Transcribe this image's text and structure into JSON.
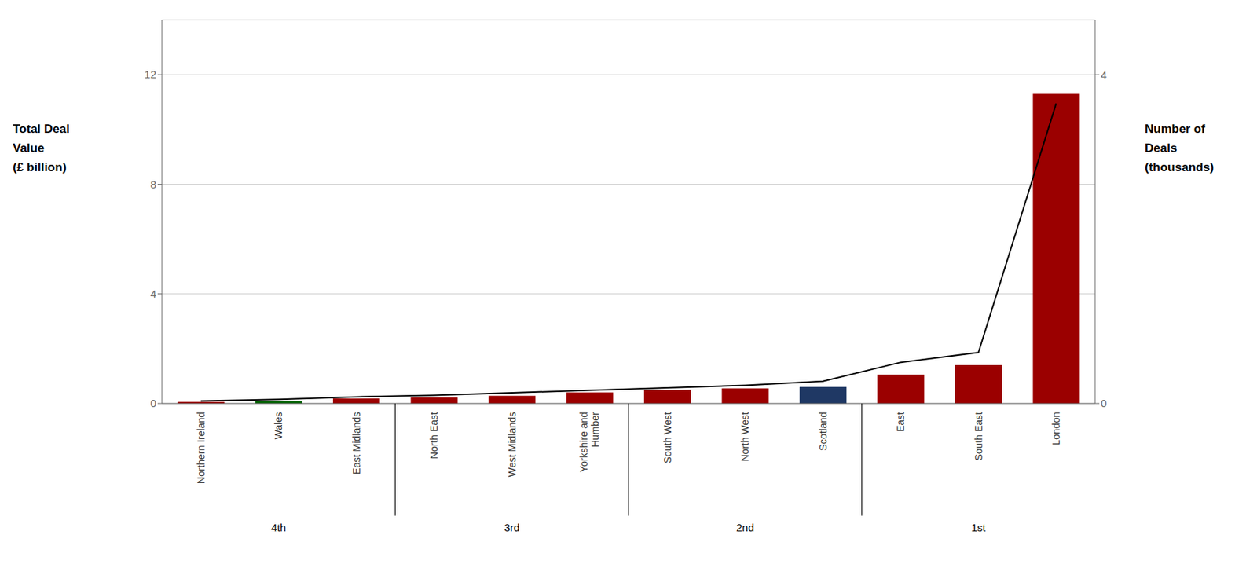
{
  "chart_data": {
    "type": "bar",
    "categories": [
      "Northern Ireland",
      "Wales",
      "East Midlands",
      "North East",
      "West Midlands",
      "Yorkshire and\nHumber",
      "South West",
      "North West",
      "Scotland",
      "East",
      "South East",
      "London"
    ],
    "ylabel": "Total Deal\nValue\n(£ billion)",
    "y2label": "Number of\nDeals\n(thousands)",
    "series": [
      {
        "type": "bar",
        "axis": "y",
        "colors": [
          "#9B0000",
          "#006400",
          "#9B0000",
          "#9B0000",
          "#9B0000",
          "#9B0000",
          "#9B0000",
          "#9B0000",
          "#1F3864",
          "#9B0000",
          "#9B0000",
          "#9B0000"
        ],
        "values": [
          0.06,
          0.09,
          0.18,
          0.22,
          0.28,
          0.4,
          0.5,
          0.55,
          0.6,
          1.05,
          1.4,
          11.3
        ]
      },
      {
        "type": "line",
        "axis": "y2",
        "color": "#000000",
        "values": [
          0.03,
          0.05,
          0.08,
          0.1,
          0.13,
          0.16,
          0.19,
          0.22,
          0.27,
          0.5,
          0.62,
          3.65
        ]
      }
    ],
    "groups": [
      {
        "label": "4th",
        "categories": [
          "Northern Ireland",
          "Wales",
          "East Midlands"
        ]
      },
      {
        "label": "3rd",
        "categories": [
          "North East",
          "West Midlands",
          "Yorkshire and\nHumber"
        ]
      },
      {
        "label": "2nd",
        "categories": [
          "South West",
          "North West",
          "Scotland"
        ]
      },
      {
        "label": "1st",
        "categories": [
          "East",
          "South East",
          "London"
        ]
      }
    ],
    "ylim": [
      0,
      14
    ],
    "yticks": [
      0,
      4,
      8,
      12
    ],
    "y2lim": [
      0,
      4.667
    ],
    "y2ticks": [
      0,
      4
    ],
    "grid": true
  }
}
